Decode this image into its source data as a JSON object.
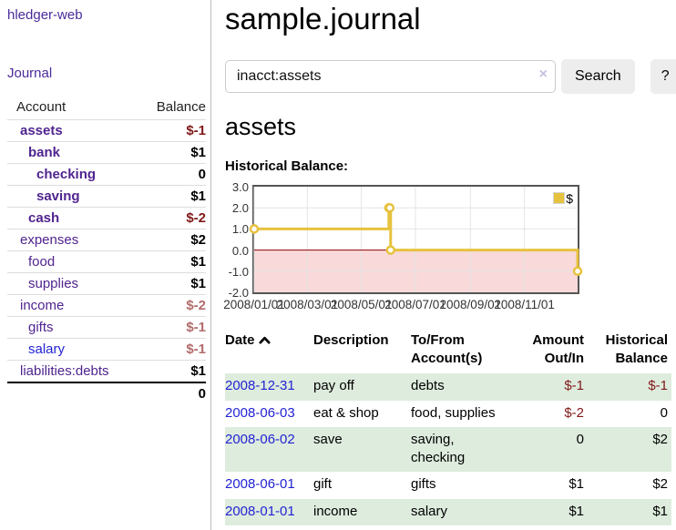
{
  "app": {
    "brand": "hledger-web"
  },
  "sidebar": {
    "journal_link": "Journal",
    "accounts_table": {
      "headers": {
        "account": "Account",
        "balance": "Balance"
      },
      "rows": [
        {
          "name": "assets",
          "balance": "$-1"
        },
        {
          "name": "bank",
          "balance": "$1"
        },
        {
          "name": "checking",
          "balance": "0"
        },
        {
          "name": "saving",
          "balance": "$1"
        },
        {
          "name": "cash",
          "balance": "$-2"
        },
        {
          "name": "expenses",
          "balance": "$2"
        },
        {
          "name": "food",
          "balance": "$1"
        },
        {
          "name": "supplies",
          "balance": "$1"
        },
        {
          "name": "income",
          "balance": "$-2"
        },
        {
          "name": "gifts",
          "balance": "$-1"
        },
        {
          "name": "salary",
          "balance": "$-1"
        },
        {
          "name": "liabilities:debts",
          "balance": "$1"
        }
      ],
      "total": "0"
    }
  },
  "main": {
    "title": "sample.journal",
    "search": {
      "value": "inacct:assets",
      "clear_icon": "×",
      "search_button": "Search",
      "help_button": "?"
    },
    "account_heading": "assets",
    "register": {
      "headers": {
        "date": "Date",
        "sort_icon": "chevron-up",
        "description": "Description",
        "tofrom": "To/From Account(s)",
        "amount": "Amount Out/In",
        "balance": "Historical Balance"
      },
      "rows": [
        {
          "date": "2008-12-31",
          "description": "pay off",
          "accounts": "debts",
          "amount": "$-1",
          "balance": "$-1"
        },
        {
          "date": "2008-06-03",
          "description": "eat & shop",
          "accounts": "food, supplies",
          "amount": "$-2",
          "balance": "0"
        },
        {
          "date": "2008-06-02",
          "description": "save",
          "accounts": "saving, checking",
          "amount": "0",
          "balance": "$2"
        },
        {
          "date": "2008-06-01",
          "description": "gift",
          "accounts": "gifts",
          "amount": "$1",
          "balance": "$2"
        },
        {
          "date": "2008-01-01",
          "description": "income",
          "accounts": "salary",
          "amount": "$1",
          "balance": "$1"
        }
      ]
    }
  },
  "chart_data": {
    "type": "line",
    "title": "Historical Balance:",
    "step": true,
    "x_range": [
      "2008-01-01",
      "2008-12-31"
    ],
    "ylim": [
      -2,
      3
    ],
    "yticks": [
      "3.0",
      "2.0",
      "1.0",
      "0.0",
      "-1.0",
      "-2.0"
    ],
    "xticks": [
      "2008/01/01",
      "2008/03/01",
      "2008/05/01",
      "2008/07/01",
      "2008/09/01",
      "2008/11/01"
    ],
    "grid": true,
    "legend": {
      "label": "$",
      "position": "top-right"
    },
    "series": [
      {
        "name": "$",
        "color": "#e7c23f",
        "points": [
          [
            "2008-01-01",
            1
          ],
          [
            "2008-06-01",
            2
          ],
          [
            "2008-06-02",
            2
          ],
          [
            "2008-06-03",
            0
          ],
          [
            "2008-12-31",
            -1
          ]
        ]
      }
    ],
    "colors": {
      "negative_region": "#f9d9d9",
      "zero_line": "#8b0000",
      "grid": "#e4e4e4",
      "border": "#555555"
    }
  }
}
